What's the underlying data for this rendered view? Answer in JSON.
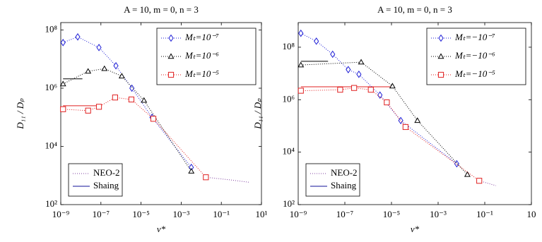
{
  "chart_data": [
    {
      "type": "line",
      "title": "A = 10, m = 0, n = 3",
      "xlabel": "ν*",
      "ylabel": "D₁₁ / Dₚ",
      "xlog": true,
      "ylog": true,
      "xlim": [
        1e-09,
        10
      ],
      "ylim": [
        100,
        180000000.0
      ],
      "xticks": [
        {
          "value": 1e-09,
          "label": "10⁻⁹"
        },
        {
          "value": 1e-07,
          "label": "10⁻⁷"
        },
        {
          "value": 1e-05,
          "label": "10⁻⁵"
        },
        {
          "value": 0.001,
          "label": "10⁻³"
        },
        {
          "value": 0.1,
          "label": "10⁻¹"
        },
        {
          "value": 10,
          "label": "10¹"
        }
      ],
      "yticks": [
        {
          "value": 100,
          "label": "10²"
        },
        {
          "value": 10000,
          "label": "10⁴"
        },
        {
          "value": 1000000,
          "label": "10⁶"
        },
        {
          "value": 100000000,
          "label": "10⁸"
        }
      ],
      "legend": "upper right",
      "series": [
        {
          "name": "Mₜ=10⁻⁷",
          "color": "#1f1fd6",
          "marker": "diamond",
          "x": [
            1.3e-09,
            7e-09,
            8e-08,
            5.6e-07,
            3.5e-06,
            3.5e-05,
            0.0032
          ],
          "values": [
            37000000.0,
            58000000.0,
            25000000.0,
            5900000.0,
            1000000.0,
            100000.0,
            1900
          ]
        },
        {
          "name": "Mₜ=10⁻⁶",
          "color": "#000000",
          "marker": "triangle",
          "x": [
            1.3e-09,
            2.3e-08,
            1.5e-07,
            1.1e-06,
            1.4e-05,
            0.0032
          ],
          "values": [
            1400000.0,
            3800000.0,
            4700000.0,
            2600000.0,
            380000.0,
            1400
          ]
        },
        {
          "name": "Mₜ=10⁻⁵",
          "color": "#e02020",
          "marker": "square",
          "x": [
            1.3e-09,
            2.3e-08,
            8e-08,
            5.1e-07,
            3.3e-06,
            4.1e-05,
            0.017
          ],
          "values": [
            190000.0,
            170000.0,
            230000.0,
            480000.0,
            410000.0,
            89000.0,
            870
          ]
        }
      ],
      "neo2": {
        "name": "NEO-2",
        "color": "#8040a0",
        "x": [
          0.017,
          0.3,
          2.3
        ],
        "values": [
          870,
          700,
          590
        ]
      },
      "shaing": {
        "name": "Shaing",
        "color": "#10109a",
        "lines": [
          {
            "color": "#000000",
            "x": [
              1.3e-09,
              1.2e-08
            ],
            "values": [
              2100000.0,
              2100000.0
            ]
          },
          {
            "color": "#e02020",
            "x": [
              1.3e-09,
              8e-08
            ],
            "values": [
              250000.0,
              250000.0
            ]
          }
        ]
      }
    },
    {
      "type": "line",
      "title": "A = 10, m = 0, n = 3",
      "xlabel": "ν*",
      "ylabel": "D₁₁ / Dₚ",
      "xlog": true,
      "ylog": true,
      "xlim": [
        1e-09,
        10
      ],
      "ylim": [
        100,
        870000000.0
      ],
      "xticks": [
        {
          "value": 1e-09,
          "label": "10⁻⁹"
        },
        {
          "value": 1e-07,
          "label": "10⁻⁷"
        },
        {
          "value": 1e-05,
          "label": "10⁻⁵"
        },
        {
          "value": 0.001,
          "label": "10⁻³"
        },
        {
          "value": 0.1,
          "label": "10⁻¹"
        },
        10
      ],
      "yticks": [
        {
          "value": 100,
          "label": "10²"
        },
        {
          "value": 10000,
          "label": "10⁴"
        },
        {
          "value": 1000000,
          "label": "10⁶"
        },
        {
          "value": 100000000,
          "label": "10⁸"
        }
      ],
      "legend": "upper right",
      "series": [
        {
          "name": "Mₜ=−10⁻⁷",
          "color": "#1f1fd6",
          "marker": "diamond",
          "x": [
            1.3e-09,
            6e-09,
            3e-08,
            1.4e-07,
            4e-07,
            3.2e-06,
            2.5e-05,
            0.0063
          ],
          "values": [
            340000000.0,
            170000000.0,
            54000000.0,
            14000000.0,
            9300000.0,
            1500000.0,
            160000.0,
            3600
          ]
        },
        {
          "name": "Mₜ=−10⁻⁶",
          "color": "#000000",
          "marker": "triangle",
          "x": [
            1.3e-09,
            5e-07,
            1.1e-05,
            0.00013,
            0.018
          ],
          "values": [
            21000000.0,
            27000000.0,
            3300000.0,
            160000.0,
            1400
          ]
        },
        {
          "name": "Mₜ=−10⁻⁵",
          "color": "#e02020",
          "marker": "square",
          "x": [
            1.3e-09,
            6.3e-08,
            2.5e-07,
            1.3e-06,
            6.3e-06,
            4e-05,
            0.058
          ],
          "values": [
            2200000.0,
            2400000.0,
            2800000.0,
            2400000.0,
            790000.0,
            91000.0,
            810
          ]
        }
      ],
      "neo2": {
        "name": "NEO-2",
        "color": "#8040a0",
        "x": [
          0.058,
          0.3
        ],
        "values": [
          810,
          530
        ]
      },
      "shaing": {
        "name": "Shaing",
        "color": "#10109a",
        "lines": [
          {
            "color": "#000000",
            "x": [
              1.3e-09,
              1.9e-08
            ],
            "values": [
              29000000.0,
              29000000.0
            ]
          },
          {
            "color": "#e02020",
            "x": [
              1.3e-09,
              9e-06
            ],
            "values": [
              3100000.0,
              3100000.0
            ]
          }
        ]
      }
    }
  ]
}
